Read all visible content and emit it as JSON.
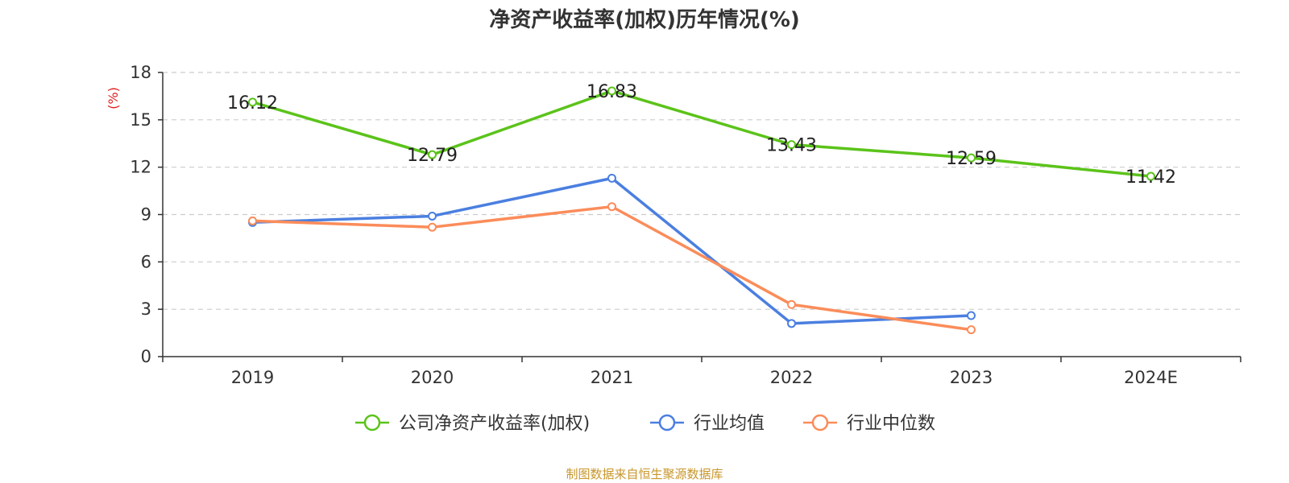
{
  "title": "净资产收益率(加权)历年情况(%)",
  "footer": "制图数据来自恒生聚源数据库",
  "colors": {
    "company": "#5bc31a",
    "industry_avg": "#4b7fe0",
    "industry_median": "#fb8c5a",
    "axis": "#333333",
    "grid": "#cccccc",
    "unit": "#e02020",
    "footer": "#c8962a"
  },
  "chart_data": {
    "type": "line",
    "title": "净资产收益率(加权)历年情况(%)",
    "xlabel": "",
    "ylabel": "(%)",
    "categories": [
      "2019",
      "2020",
      "2021",
      "2022",
      "2023",
      "2024E"
    ],
    "yticks": [
      0,
      3,
      6,
      9,
      12,
      15,
      18
    ],
    "ylim": [
      0,
      18
    ],
    "grid": true,
    "legend_position": "bottom-center",
    "series": [
      {
        "name": "公司净资产收益率(加权)",
        "values": [
          16.12,
          12.79,
          16.83,
          13.43,
          12.59,
          11.42
        ],
        "labels": [
          "16.12",
          "12.79",
          "16.83",
          "13.43",
          "12.59",
          "11.42"
        ],
        "color_key": "company",
        "show_labels": true
      },
      {
        "name": "行业均值",
        "values": [
          8.5,
          8.9,
          11.3,
          2.1,
          2.6,
          null
        ],
        "color_key": "industry_avg",
        "show_labels": false
      },
      {
        "name": "行业中位数",
        "values": [
          8.6,
          8.2,
          9.5,
          3.3,
          1.7,
          null
        ],
        "color_key": "industry_median",
        "show_labels": false
      }
    ]
  }
}
